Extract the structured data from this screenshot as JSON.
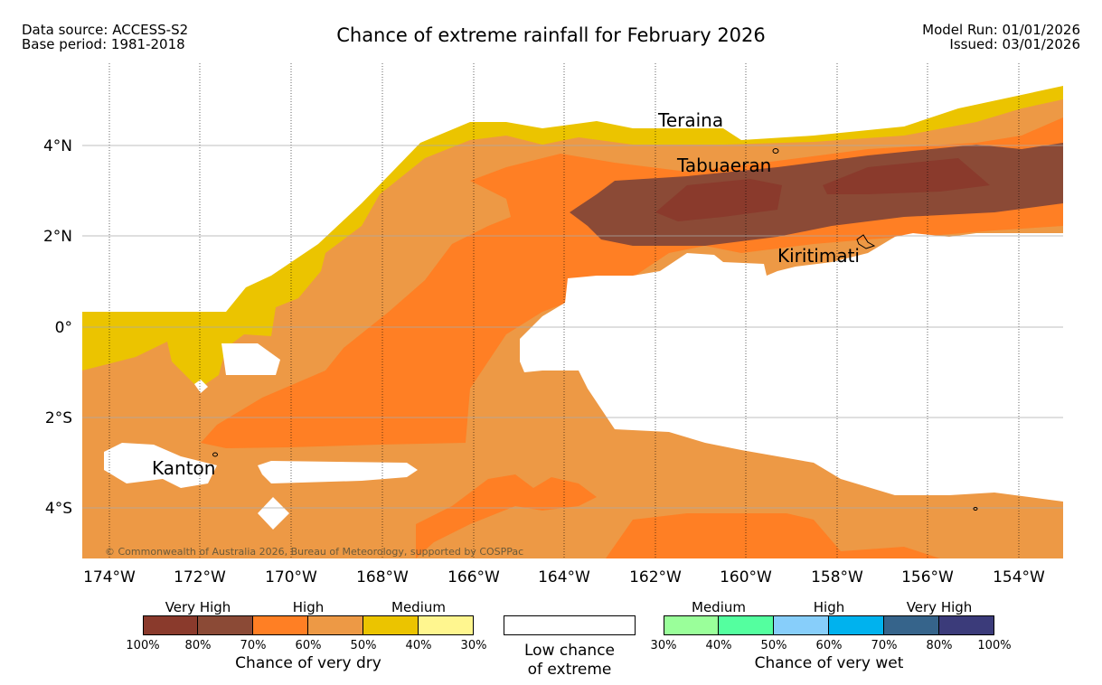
{
  "header": {
    "data_source": "Data source: ACCESS-S2",
    "base_period": "Base period: 1981-2018",
    "title": "Chance of extreme rainfall for February 2026",
    "model_run": "Model Run: 01/01/2026",
    "issued": "Issued: 03/01/2026"
  },
  "map": {
    "lon_labels": [
      "174°W",
      "172°W",
      "170°W",
      "168°W",
      "166°W",
      "164°W",
      "162°W",
      "160°W",
      "158°W",
      "156°W",
      "154°W"
    ],
    "lat_labels": [
      "4°N",
      "2°N",
      "0°",
      "2°S",
      "4°S"
    ],
    "places": [
      "Teraina",
      "Tabuaeran",
      "Kiritimati",
      "Kanton"
    ],
    "copyright": "© Commonwealth of Australia 2026, Bureau of Meteorology, supported by COSPPac",
    "colors": {
      "dry_100_80": "#8a3a2c",
      "dry_80_70": "#8b4a36",
      "dry_70_60": "#ff7f24",
      "dry_60_50": "#ed9945",
      "dry_50_40": "#ebc400",
      "dry_40_30": "#fff68f",
      "low": "#ffffff"
    }
  },
  "legend": {
    "dry": {
      "headers": [
        "Very High",
        "High",
        "Medium"
      ],
      "percents": [
        "100%",
        "80%",
        "70%",
        "60%",
        "50%",
        "40%",
        "30%"
      ],
      "colors": [
        "#8a3a2c",
        "#8b4a36",
        "#ff7f24",
        "#ed9945",
        "#ebc400",
        "#fff68f"
      ],
      "title": "Chance of very dry"
    },
    "low": {
      "line1": "Low chance",
      "line2": "of extreme"
    },
    "wet": {
      "headers": [
        "Medium",
        "High",
        "Very High"
      ],
      "percents": [
        "30%",
        "40%",
        "50%",
        "60%",
        "70%",
        "80%",
        "100%"
      ],
      "colors": [
        "#9aff9a",
        "#54ff9f",
        "#87cefa",
        "#00b2ee",
        "#36648b",
        "#3b3b7a"
      ],
      "title": "Chance of very wet"
    }
  }
}
